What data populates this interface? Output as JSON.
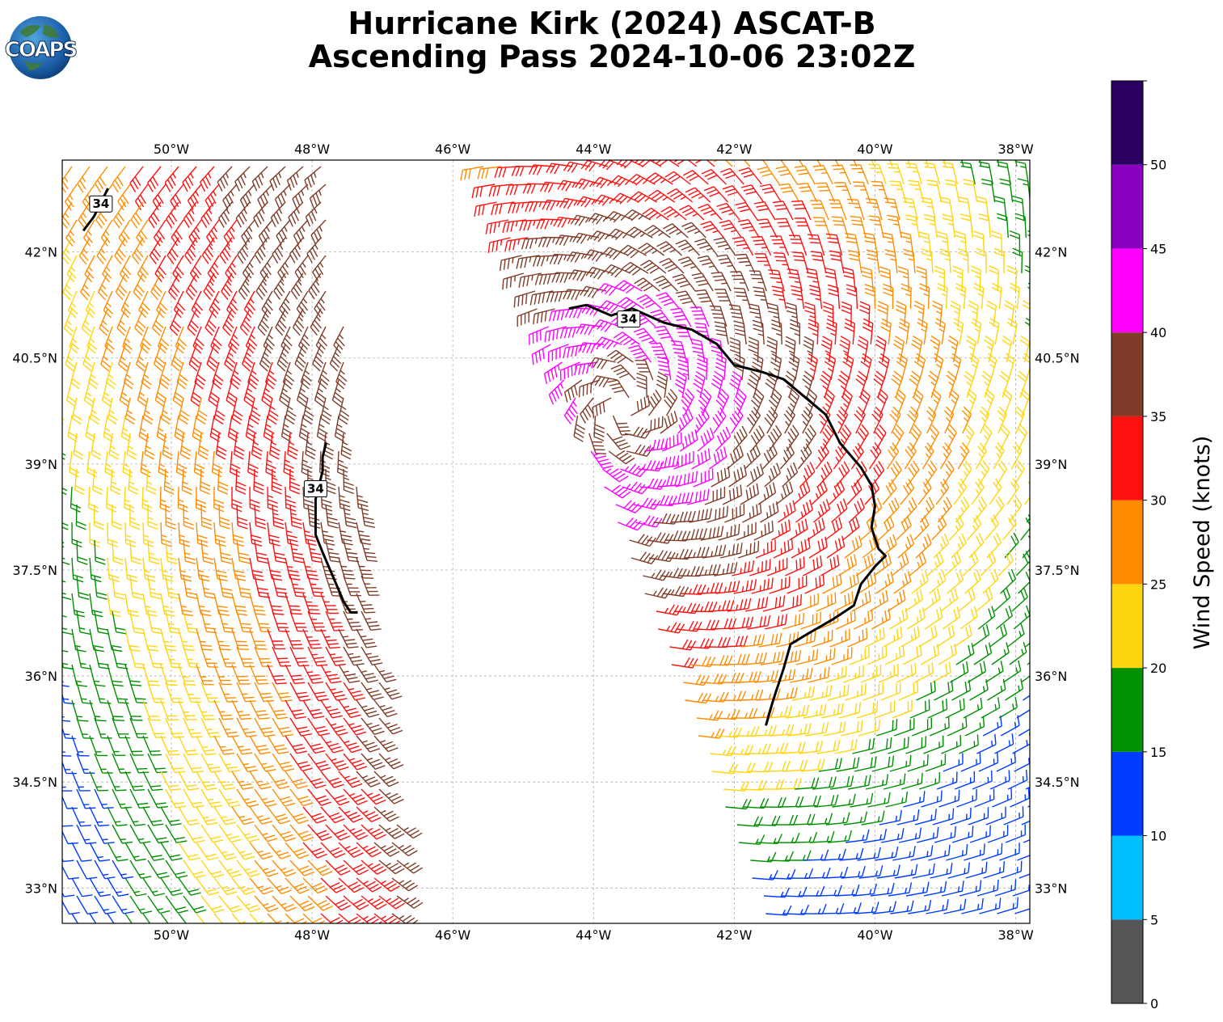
{
  "title": {
    "line1": "Hurricane Kirk (2024) ASCAT-B",
    "line2": "Ascending Pass 2024-10-06 23:02Z"
  },
  "logo": {
    "text": "COAPS",
    "icon": "globe-icon"
  },
  "map": {
    "lon_range": [
      -51.55,
      -37.8
    ],
    "lat_range": [
      32.5,
      43.3
    ],
    "lon_ticks": [
      {
        "value": -50,
        "label": "50°W"
      },
      {
        "value": -48,
        "label": "48°W"
      },
      {
        "value": -46,
        "label": "46°W"
      },
      {
        "value": -44,
        "label": "44°W"
      },
      {
        "value": -42,
        "label": "42°W"
      },
      {
        "value": -40,
        "label": "40°W"
      },
      {
        "value": -38,
        "label": "38°W"
      }
    ],
    "lat_ticks": [
      {
        "value": 42,
        "label": "42°N"
      },
      {
        "value": 40.5,
        "label": "40.5°N"
      },
      {
        "value": 39,
        "label": "39°N"
      },
      {
        "value": 37.5,
        "label": "37.5°N"
      },
      {
        "value": 36,
        "label": "36°N"
      },
      {
        "value": 34.5,
        "label": "34.5°N"
      },
      {
        "value": 33,
        "label": "33°N"
      }
    ],
    "gridlines": true
  },
  "colorbar": {
    "label": "Wind Speed (knots)",
    "bins": [
      {
        "min": 0,
        "max": 5,
        "color": "#555555"
      },
      {
        "min": 5,
        "max": 10,
        "color": "#00bfff"
      },
      {
        "min": 10,
        "max": 15,
        "color": "#003cff"
      },
      {
        "min": 15,
        "max": 20,
        "color": "#009000"
      },
      {
        "min": 20,
        "max": 25,
        "color": "#ffd510"
      },
      {
        "min": 25,
        "max": 30,
        "color": "#ff8c00"
      },
      {
        "min": 30,
        "max": 35,
        "color": "#ff1010"
      },
      {
        "min": 35,
        "max": 40,
        "color": "#7f3c28"
      },
      {
        "min": 40,
        "max": 45,
        "color": "#ff00ff"
      },
      {
        "min": 45,
        "max": 50,
        "color": "#8a00c0"
      },
      {
        "min": 50,
        "max": 55,
        "color": "#2a0060"
      }
    ],
    "tick_labels": [
      "0",
      "5",
      "10",
      "15",
      "20",
      "25",
      "30",
      "35",
      "40",
      "45",
      "50"
    ]
  },
  "contour": {
    "level_label": "34",
    "lines": [
      {
        "points": [
          [
            -51.25,
            42.3
          ],
          [
            -51.1,
            42.5
          ],
          [
            -50.9,
            42.9
          ]
        ],
        "label_at": [
          -51.0,
          42.68
        ]
      },
      {
        "points": [
          [
            -47.8,
            39.3
          ],
          [
            -47.85,
            39.1
          ],
          [
            -47.85,
            38.9
          ],
          [
            -47.95,
            38.5
          ],
          [
            -47.95,
            38.0
          ],
          [
            -47.85,
            37.75
          ],
          [
            -47.7,
            37.4
          ],
          [
            -47.55,
            37.05
          ],
          [
            -47.45,
            36.9
          ],
          [
            -47.35,
            36.9
          ]
        ],
        "label_at": [
          -47.95,
          38.65
        ]
      },
      {
        "points": [
          [
            -44.35,
            41.2
          ],
          [
            -44.1,
            41.25
          ],
          [
            -43.75,
            41.1
          ],
          [
            -43.45,
            41.2
          ],
          [
            -43.0,
            41.0
          ],
          [
            -42.6,
            40.9
          ],
          [
            -42.25,
            40.7
          ],
          [
            -42.0,
            40.4
          ],
          [
            -41.6,
            40.3
          ],
          [
            -41.3,
            40.2
          ],
          [
            -41.0,
            39.95
          ],
          [
            -40.7,
            39.7
          ],
          [
            -40.5,
            39.3
          ],
          [
            -40.2,
            38.95
          ],
          [
            -40.05,
            38.7
          ],
          [
            -40.0,
            38.4
          ],
          [
            -40.05,
            38.1
          ],
          [
            -39.95,
            37.8
          ],
          [
            -39.85,
            37.7
          ],
          [
            -40.0,
            37.55
          ],
          [
            -40.2,
            37.3
          ],
          [
            -40.3,
            37.0
          ],
          [
            -40.6,
            36.8
          ],
          [
            -40.95,
            36.6
          ],
          [
            -41.2,
            36.45
          ],
          [
            -41.3,
            36.1
          ],
          [
            -41.45,
            35.65
          ],
          [
            -41.55,
            35.3
          ]
        ],
        "label_at": [
          -43.5,
          41.05
        ]
      }
    ]
  },
  "barbs": {
    "swaths": [
      {
        "name": "west-swath",
        "north_edge": [
          [
            -51.55,
            43.3
          ],
          [
            -47.6,
            43.3
          ]
        ],
        "south_edge": [
          [
            -51.55,
            32.5
          ],
          [
            -46.7,
            32.5
          ]
        ],
        "west_lon": -51.55,
        "east_top_lon": -47.85,
        "east_bottom_lon": -46.7
      },
      {
        "name": "east-swath",
        "west_top_lon": -45.6,
        "west_bottom_lon": -41.5,
        "east_lon": -37.8
      }
    ],
    "storm_center": [
      -43.6,
      39.8
    ]
  }
}
